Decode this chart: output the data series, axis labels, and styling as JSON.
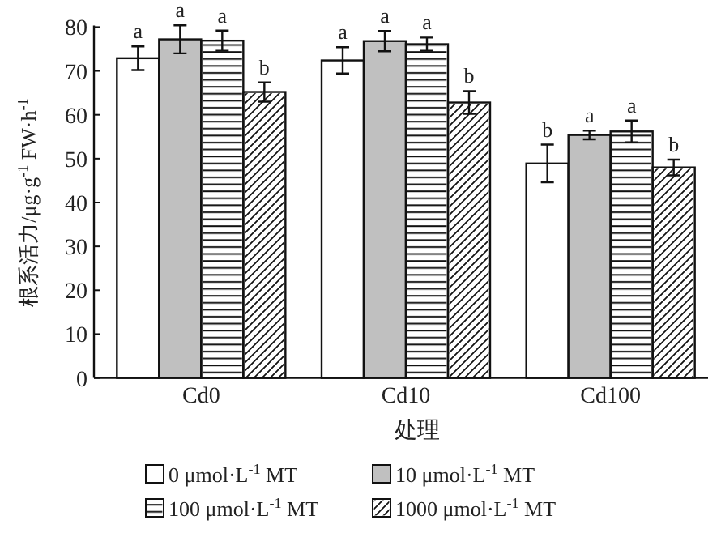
{
  "chart_data": {
    "type": "bar",
    "xlabel": "处理",
    "ylabel": "根系活力/μg·g$^{-1}$ FW·h$^{-1}$",
    "categories": [
      "Cd0",
      "Cd10",
      "Cd100"
    ],
    "ylim": [
      0,
      80
    ],
    "yticks": [
      0,
      10,
      20,
      30,
      40,
      50,
      60,
      70,
      80
    ],
    "grid": false,
    "legend": "bottom",
    "series": [
      {
        "name": "0 μmol·L$^{-1}$ MT",
        "color": "#ffffff",
        "values": [
          72.9,
          72.4,
          48.9
        ],
        "errors": [
          2.7,
          3.0,
          4.3
        ],
        "value_labels": [
          "a",
          "a",
          "b"
        ]
      },
      {
        "name": "10 μmol·L$^{-1}$ MT",
        "color": "#c0c0c0",
        "values": [
          77.2,
          76.8,
          55.4
        ],
        "errors": [
          3.2,
          2.3,
          1.0
        ],
        "value_labels": [
          "a",
          "a",
          "a"
        ]
      },
      {
        "name": "100 μmol·L$^{-1}$ MT",
        "color": "#ffffff",
        "values": [
          76.9,
          76.1,
          56.2
        ],
        "errors": [
          2.3,
          1.5,
          2.5
        ],
        "value_labels": [
          "a",
          "a",
          "a"
        ]
      },
      {
        "name": "1000 μmol·L$^{-1}$ MT",
        "color": "#ffffff",
        "values": [
          65.2,
          62.8,
          48.0
        ],
        "errors": [
          2.2,
          2.6,
          1.8
        ],
        "value_labels": [
          "b",
          "b",
          "b"
        ]
      }
    ]
  }
}
